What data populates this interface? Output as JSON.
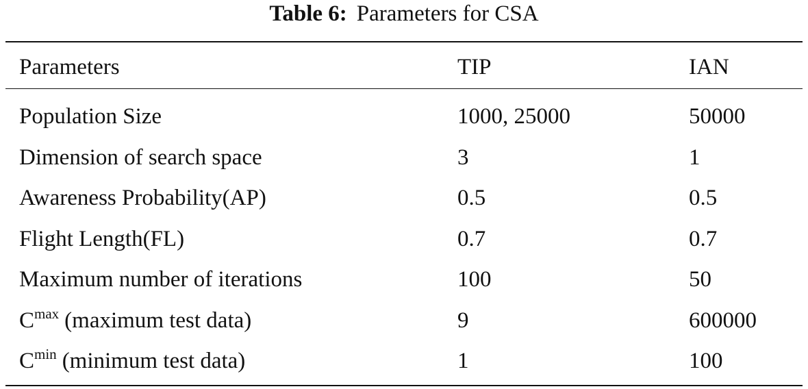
{
  "title": {
    "label": "Table 6:",
    "text": "Parameters for CSA"
  },
  "table": {
    "header": [
      "Parameters",
      "TIP",
      "IAN"
    ],
    "rows": [
      [
        "Population Size",
        "1000, 25000",
        "50000"
      ],
      [
        "Dimension of search space",
        "3",
        "1"
      ],
      [
        "Awareness Probability(AP)",
        "0.5",
        "0.5"
      ],
      [
        "Flight Length(FL)",
        "0.7",
        "0.7"
      ],
      [
        "Maximum number of iterations",
        "100",
        "50"
      ],
      [
        {
          "base": "C",
          "sup": "max",
          "rest": "(maximum test data)"
        },
        "9",
        "600000"
      ],
      [
        {
          "base": "C",
          "sup": "min",
          "rest": "(minimum test data)"
        },
        "1",
        "100"
      ]
    ]
  }
}
